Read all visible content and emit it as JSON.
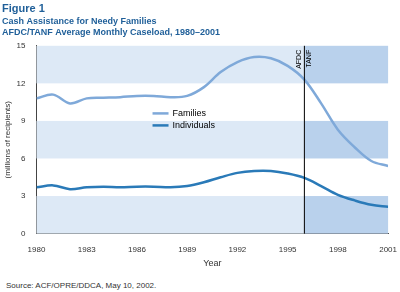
{
  "chart_data": {
    "type": "line",
    "title": "Figure 1",
    "subtitle": [
      "Cash Assistance for Needy Families",
      "AFDC/TANF Average Monthly Caseload, 1980–2001"
    ],
    "x_label": "Year",
    "y_label": "(millions of recipients)",
    "source": "Source: ACF/OPRE/DDCA, May 10, 2002.",
    "x": [
      1980,
      1981,
      1982,
      1983,
      1984,
      1985,
      1986,
      1987,
      1988,
      1989,
      1990,
      1991,
      1992,
      1993,
      1994,
      1995,
      1996,
      1997,
      1998,
      1999,
      2000,
      2001
    ],
    "series": [
      {
        "name": "Families",
        "color": "#7fa9d9",
        "values": [
          10.8,
          11.1,
          10.4,
          10.8,
          10.85,
          10.9,
          11.0,
          11.0,
          10.9,
          11.0,
          11.7,
          12.9,
          13.7,
          14.1,
          14.0,
          13.4,
          12.3,
          10.4,
          8.3,
          6.9,
          5.8,
          5.4
        ]
      },
      {
        "name": "Individuals",
        "color": "#2a7ab8",
        "values": [
          3.7,
          3.85,
          3.55,
          3.7,
          3.75,
          3.7,
          3.75,
          3.75,
          3.7,
          3.8,
          4.1,
          4.5,
          4.85,
          5.0,
          5.0,
          4.8,
          4.45,
          3.8,
          3.1,
          2.65,
          2.3,
          2.15
        ]
      }
    ],
    "xlim": [
      1980,
      2001
    ],
    "xticks": [
      1980,
      1983,
      1986,
      1989,
      1992,
      1995,
      1998,
      2001
    ],
    "ylim": [
      0,
      15
    ],
    "yticks": [
      0,
      3,
      6,
      9,
      12,
      15
    ],
    "grid": true,
    "legend": "center",
    "divider": {
      "x": 1996,
      "labels": [
        "AFDC",
        "TANF"
      ]
    }
  }
}
